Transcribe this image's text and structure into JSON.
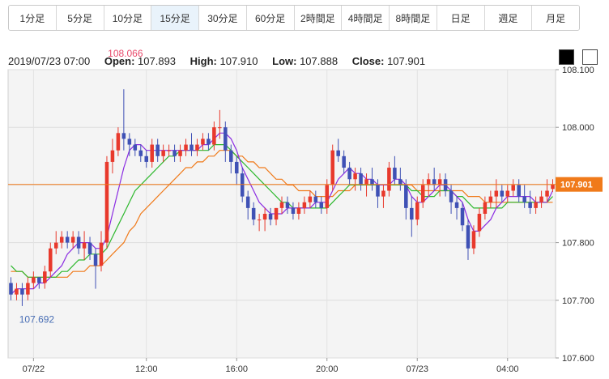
{
  "toolbar": {
    "tabs": [
      "1分足",
      "5分足",
      "10分足",
      "15分足",
      "30分足",
      "60分足",
      "2時間足",
      "4時間足",
      "8時間足",
      "日足",
      "週足",
      "月足"
    ],
    "active_tab": "15分足"
  },
  "info": {
    "datetime": "2019/07/23 07:00",
    "open_label": "Open:",
    "open": "107.893",
    "high_label": "High:",
    "high": "107.910",
    "low_label": "Low:",
    "low": "107.888",
    "close_label": "Close:",
    "close": "107.901"
  },
  "theme_buttons": {
    "dark": "#000000",
    "light": "#ffffff"
  },
  "colors": {
    "up": "#e8392c",
    "down": "#3f51b5",
    "ma_short": "#8a2be2",
    "ma_mid": "#2db82d",
    "ma_long": "#f07a1a",
    "price_line": "#f07a1a"
  },
  "chart_data": {
    "type": "candlestick",
    "ylim": [
      107.6,
      108.1
    ],
    "y_ticks": [
      "108.100",
      "108.000",
      "107.900",
      "107.800",
      "107.700",
      "107.600"
    ],
    "x_ticks": [
      "07/22",
      "12:00",
      "16:00",
      "20:00",
      "07/23",
      "04:00"
    ],
    "current_price": "107.901",
    "high_annotation": "108.066",
    "low_annotation": "107.692",
    "candles": [
      [
        107.73,
        107.74,
        107.7,
        107.71
      ],
      [
        107.71,
        107.73,
        107.7,
        107.72
      ],
      [
        107.72,
        107.73,
        107.69,
        107.71
      ],
      [
        107.71,
        107.74,
        107.7,
        107.73
      ],
      [
        107.73,
        107.75,
        107.72,
        107.74
      ],
      [
        107.74,
        107.74,
        107.72,
        107.73
      ],
      [
        107.73,
        107.76,
        107.72,
        107.75
      ],
      [
        107.75,
        107.8,
        107.74,
        107.79
      ],
      [
        107.79,
        107.82,
        107.78,
        107.8
      ],
      [
        107.8,
        107.82,
        107.79,
        107.81
      ],
      [
        107.81,
        107.82,
        107.79,
        107.8
      ],
      [
        107.8,
        107.82,
        107.79,
        107.81
      ],
      [
        107.81,
        107.82,
        107.78,
        107.79
      ],
      [
        107.79,
        107.82,
        107.77,
        107.8
      ],
      [
        107.8,
        107.81,
        107.77,
        107.78
      ],
      [
        107.78,
        107.79,
        107.72,
        107.76
      ],
      [
        107.76,
        107.82,
        107.75,
        107.8
      ],
      [
        107.8,
        107.95,
        107.79,
        107.94
      ],
      [
        107.94,
        107.98,
        107.92,
        107.96
      ],
      [
        107.96,
        108.0,
        107.95,
        107.99
      ],
      [
        107.99,
        108.066,
        107.96,
        107.98
      ],
      [
        107.98,
        107.99,
        107.95,
        107.97
      ],
      [
        107.97,
        107.98,
        107.95,
        107.96
      ],
      [
        107.96,
        107.97,
        107.94,
        107.95
      ],
      [
        107.95,
        107.96,
        107.93,
        107.94
      ],
      [
        107.94,
        107.98,
        107.93,
        107.97
      ],
      [
        107.97,
        107.98,
        107.94,
        107.95
      ],
      [
        107.95,
        107.97,
        107.94,
        107.96
      ],
      [
        107.96,
        107.97,
        107.95,
        107.96
      ],
      [
        107.96,
        107.97,
        107.94,
        107.95
      ],
      [
        107.95,
        107.97,
        107.94,
        107.96
      ],
      [
        107.96,
        107.98,
        107.95,
        107.97
      ],
      [
        107.97,
        107.99,
        107.95,
        107.96
      ],
      [
        107.96,
        107.98,
        107.95,
        107.97
      ],
      [
        107.97,
        107.99,
        107.96,
        107.98
      ],
      [
        107.98,
        107.99,
        107.96,
        107.97
      ],
      [
        107.97,
        108.01,
        107.96,
        108.0
      ],
      [
        108.0,
        108.03,
        107.98,
        108.0
      ],
      [
        108.0,
        108.01,
        107.94,
        107.96
      ],
      [
        107.96,
        107.97,
        107.92,
        107.94
      ],
      [
        107.94,
        107.95,
        107.9,
        107.92
      ],
      [
        107.92,
        107.93,
        107.87,
        107.88
      ],
      [
        107.88,
        107.89,
        107.84,
        107.86
      ],
      [
        107.86,
        107.87,
        107.83,
        107.84
      ],
      [
        107.84,
        107.85,
        107.82,
        107.84
      ],
      [
        107.84,
        107.86,
        107.82,
        107.85
      ],
      [
        107.85,
        107.86,
        107.83,
        107.84
      ],
      [
        107.84,
        107.86,
        107.83,
        107.86
      ],
      [
        107.86,
        107.88,
        107.85,
        107.87
      ],
      [
        107.87,
        107.88,
        107.85,
        107.86
      ],
      [
        107.86,
        107.87,
        107.84,
        107.85
      ],
      [
        107.85,
        107.87,
        107.84,
        107.86
      ],
      [
        107.86,
        107.88,
        107.85,
        107.87
      ],
      [
        107.87,
        107.89,
        107.86,
        107.88
      ],
      [
        107.88,
        107.89,
        107.86,
        107.87
      ],
      [
        107.87,
        107.88,
        107.85,
        107.86
      ],
      [
        107.86,
        107.91,
        107.85,
        107.9
      ],
      [
        107.9,
        107.97,
        107.89,
        107.96
      ],
      [
        107.96,
        107.98,
        107.94,
        107.95
      ],
      [
        107.95,
        107.96,
        107.92,
        107.93
      ],
      [
        107.93,
        107.94,
        107.9,
        107.91
      ],
      [
        107.91,
        107.93,
        107.89,
        107.92
      ],
      [
        107.92,
        107.93,
        107.89,
        107.9
      ],
      [
        107.9,
        107.92,
        107.88,
        107.91
      ],
      [
        107.91,
        107.93,
        107.89,
        107.9
      ],
      [
        107.9,
        107.91,
        107.86,
        107.88
      ],
      [
        107.88,
        107.9,
        107.86,
        107.89
      ],
      [
        107.89,
        107.94,
        107.88,
        107.93
      ],
      [
        107.93,
        107.95,
        107.9,
        107.91
      ],
      [
        107.91,
        107.93,
        107.89,
        107.9
      ],
      [
        107.9,
        107.91,
        107.84,
        107.86
      ],
      [
        107.86,
        107.88,
        107.81,
        107.84
      ],
      [
        107.84,
        107.88,
        107.83,
        107.87
      ],
      [
        107.87,
        107.91,
        107.86,
        107.9
      ],
      [
        107.9,
        107.92,
        107.88,
        107.91
      ],
      [
        107.91,
        107.93,
        107.89,
        107.9
      ],
      [
        107.9,
        107.92,
        107.88,
        107.91
      ],
      [
        107.91,
        107.92,
        107.88,
        107.89
      ],
      [
        107.89,
        107.9,
        107.85,
        107.87
      ],
      [
        107.87,
        107.88,
        107.84,
        107.86
      ],
      [
        107.86,
        107.87,
        107.82,
        107.83
      ],
      [
        107.83,
        107.84,
        107.77,
        107.79
      ],
      [
        107.79,
        107.83,
        107.78,
        107.82
      ],
      [
        107.82,
        107.86,
        107.81,
        107.85
      ],
      [
        107.85,
        107.88,
        107.84,
        107.87
      ],
      [
        107.87,
        107.89,
        107.86,
        107.88
      ],
      [
        107.88,
        107.91,
        107.86,
        107.89
      ],
      [
        107.89,
        107.9,
        107.87,
        107.88
      ],
      [
        107.88,
        107.9,
        107.87,
        107.89
      ],
      [
        107.89,
        107.91,
        107.88,
        107.9
      ],
      [
        107.9,
        107.91,
        107.87,
        107.88
      ],
      [
        107.88,
        107.9,
        107.86,
        107.87
      ],
      [
        107.87,
        107.89,
        107.85,
        107.86
      ],
      [
        107.86,
        107.88,
        107.85,
        107.87
      ],
      [
        107.87,
        107.89,
        107.86,
        107.88
      ],
      [
        107.88,
        107.91,
        107.87,
        107.89
      ],
      [
        107.893,
        107.91,
        107.888,
        107.901
      ]
    ],
    "ma_short_values": [
      107.71,
      107.72,
      107.72,
      107.72,
      107.72,
      107.73,
      107.73,
      107.74,
      107.75,
      107.76,
      107.78,
      107.79,
      107.8,
      107.8,
      107.8,
      107.79,
      107.79,
      107.81,
      107.85,
      107.89,
      107.93,
      107.96,
      107.97,
      107.97,
      107.96,
      107.96,
      107.96,
      107.96,
      107.96,
      107.96,
      107.96,
      107.96,
      107.96,
      107.96,
      107.97,
      107.97,
      107.98,
      107.99,
      107.99,
      107.98,
      107.96,
      107.93,
      107.91,
      107.89,
      107.87,
      107.86,
      107.85,
      107.85,
      107.85,
      107.86,
      107.86,
      107.86,
      107.86,
      107.86,
      107.87,
      107.87,
      107.87,
      107.89,
      107.91,
      107.92,
      107.93,
      107.92,
      107.92,
      107.91,
      107.91,
      107.9,
      107.9,
      107.9,
      107.91,
      107.91,
      107.9,
      107.88,
      107.87,
      107.87,
      107.88,
      107.89,
      107.9,
      107.9,
      107.89,
      107.88,
      107.87,
      107.84,
      107.82,
      107.82,
      107.83,
      107.84,
      107.86,
      107.87,
      107.88,
      107.88,
      107.88,
      107.88,
      107.88,
      107.87,
      107.87,
      107.87,
      107.89
    ],
    "ma_mid_values": [
      107.76,
      107.75,
      107.75,
      107.74,
      107.74,
      107.74,
      107.74,
      107.74,
      107.74,
      107.75,
      107.75,
      107.76,
      107.77,
      107.77,
      107.78,
      107.78,
      107.78,
      107.79,
      107.81,
      107.83,
      107.85,
      107.87,
      107.89,
      107.9,
      107.91,
      107.92,
      107.93,
      107.94,
      107.95,
      107.95,
      107.96,
      107.96,
      107.96,
      107.96,
      107.96,
      107.96,
      107.97,
      107.97,
      107.97,
      107.96,
      107.95,
      107.94,
      107.93,
      107.92,
      107.91,
      107.9,
      107.89,
      107.88,
      107.87,
      107.87,
      107.86,
      107.86,
      107.86,
      107.86,
      107.86,
      107.86,
      107.86,
      107.87,
      107.88,
      107.89,
      107.9,
      107.9,
      107.9,
      107.9,
      107.9,
      107.9,
      107.9,
      107.9,
      107.9,
      107.9,
      107.9,
      107.89,
      107.89,
      107.88,
      107.88,
      107.88,
      107.89,
      107.89,
      107.89,
      107.88,
      107.88,
      107.87,
      107.86,
      107.86,
      107.86,
      107.86,
      107.86,
      107.86,
      107.87,
      107.87,
      107.87,
      107.87,
      107.87,
      107.87,
      107.87,
      107.87,
      107.88
    ],
    "ma_long_values": [
      107.75,
      107.75,
      107.75,
      107.74,
      107.74,
      107.74,
      107.74,
      107.74,
      107.74,
      107.74,
      107.74,
      107.75,
      107.75,
      107.75,
      107.76,
      107.76,
      107.76,
      107.77,
      107.78,
      107.79,
      107.8,
      107.82,
      107.83,
      107.85,
      107.86,
      107.87,
      107.88,
      107.89,
      107.9,
      107.91,
      107.92,
      107.93,
      107.93,
      107.94,
      107.94,
      107.95,
      107.95,
      107.96,
      107.96,
      107.96,
      107.95,
      107.95,
      107.94,
      107.94,
      107.93,
      107.93,
      107.92,
      107.91,
      107.91,
      107.9,
      107.9,
      107.89,
      107.89,
      107.89,
      107.88,
      107.88,
      107.88,
      107.88,
      107.89,
      107.89,
      107.89,
      107.9,
      107.9,
      107.9,
      107.9,
      107.9,
      107.9,
      107.9,
      107.9,
      107.9,
      107.9,
      107.9,
      107.89,
      107.89,
      107.89,
      107.89,
      107.89,
      107.89,
      107.89,
      107.89,
      107.89,
      107.88,
      107.88,
      107.88,
      107.87,
      107.87,
      107.87,
      107.87,
      107.87,
      107.87,
      107.87,
      107.87,
      107.87,
      107.87,
      107.87,
      107.87,
      107.87
    ]
  }
}
